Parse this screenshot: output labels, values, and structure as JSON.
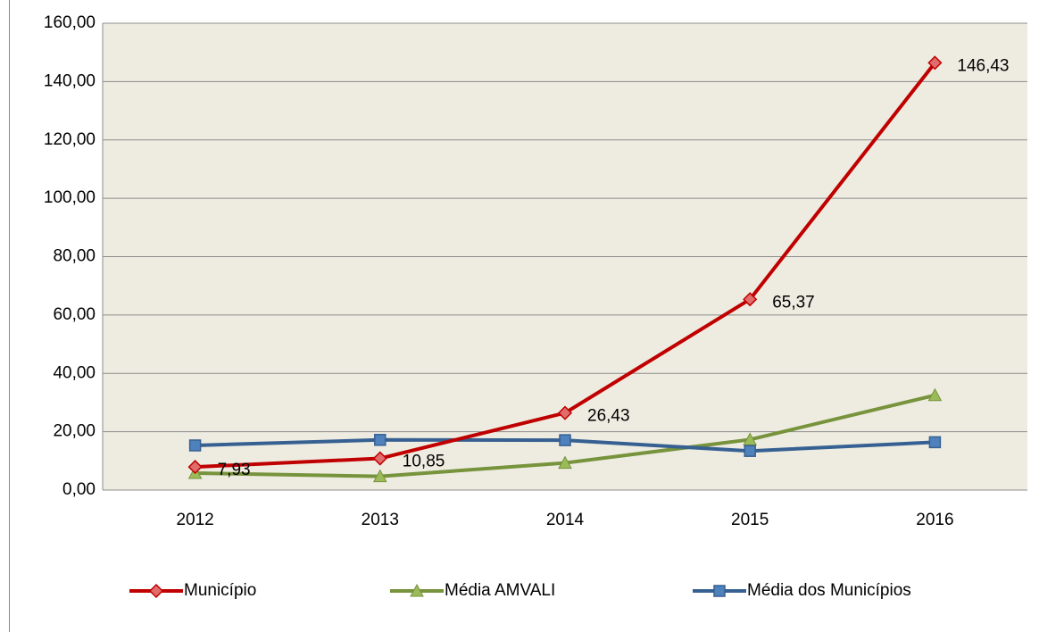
{
  "chart_data": {
    "type": "line",
    "categories": [
      "2012",
      "2013",
      "2014",
      "2015",
      "2016"
    ],
    "series": [
      {
        "name": "Município",
        "color": "#c00000",
        "marker": "diamond",
        "values": [
          7.93,
          10.85,
          26.43,
          65.37,
          146.43
        ],
        "value_labels": [
          "7,93",
          "10,85",
          "26,43",
          "65,37",
          "146,43"
        ]
      },
      {
        "name": "Média AMVALI",
        "color": "#77933c",
        "marker": "triangle",
        "values": [
          5.8,
          4.7,
          9.3,
          17.3,
          32.5
        ]
      },
      {
        "name": "Média dos Municípios",
        "color": "#376092",
        "marker": "square",
        "values": [
          15.3,
          17.2,
          17.1,
          13.4,
          16.4
        ]
      }
    ],
    "ylim": [
      0,
      160
    ],
    "yticks": [
      {
        "value": 0,
        "label": "0,00"
      },
      {
        "value": 20,
        "label": "20,00"
      },
      {
        "value": 40,
        "label": "40,00"
      },
      {
        "value": 60,
        "label": "60,00"
      },
      {
        "value": 80,
        "label": "80,00"
      },
      {
        "value": 100,
        "label": "100,00"
      },
      {
        "value": 120,
        "label": "120,00"
      },
      {
        "value": 140,
        "label": "140,00"
      },
      {
        "value": 160,
        "label": "160,00"
      }
    ],
    "grid": true,
    "legend": "bottom"
  }
}
